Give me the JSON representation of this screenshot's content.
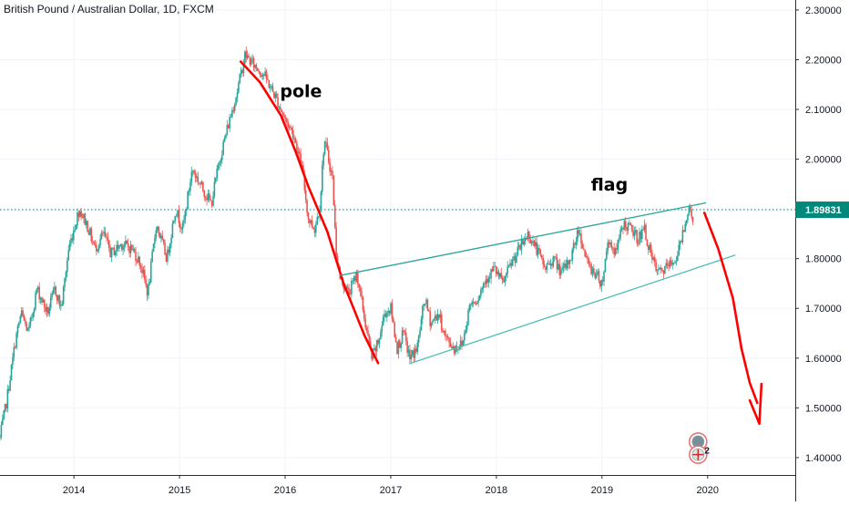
{
  "chart_data": {
    "type": "candlestick",
    "title": "British Pound / Australian Dollar, 1D, FXCM",
    "x_axis": {
      "labels": [
        "2014",
        "2015",
        "2016",
        "2017",
        "2018",
        "2019",
        "2020"
      ],
      "range": [
        2013.3,
        2020.83
      ]
    },
    "y_axis": {
      "labels": [
        "2.30000",
        "2.20000",
        "2.10000",
        "2.00000",
        "1.90000",
        "1.80000",
        "1.70000",
        "1.60000",
        "1.50000",
        "1.40000"
      ],
      "ticks": [
        2.3,
        2.2,
        2.1,
        2.0,
        1.9,
        1.8,
        1.7,
        1.6,
        1.5,
        1.4
      ],
      "range": [
        1.365,
        2.32
      ],
      "position": "right"
    },
    "price_path": [
      [
        2013.3,
        1.44
      ],
      [
        2013.36,
        1.51
      ],
      [
        2013.45,
        1.64
      ],
      [
        2013.5,
        1.69
      ],
      [
        2013.57,
        1.65
      ],
      [
        2013.65,
        1.74
      ],
      [
        2013.75,
        1.69
      ],
      [
        2013.82,
        1.74
      ],
      [
        2013.88,
        1.7
      ],
      [
        2013.95,
        1.82
      ],
      [
        2014.05,
        1.9
      ],
      [
        2014.12,
        1.87
      ],
      [
        2014.2,
        1.82
      ],
      [
        2014.28,
        1.85
      ],
      [
        2014.35,
        1.81
      ],
      [
        2014.45,
        1.83
      ],
      [
        2014.55,
        1.82
      ],
      [
        2014.63,
        1.79
      ],
      [
        2014.7,
        1.73
      ],
      [
        2014.78,
        1.87
      ],
      [
        2014.88,
        1.8
      ],
      [
        2014.96,
        1.9
      ],
      [
        2015.03,
        1.86
      ],
      [
        2015.12,
        1.98
      ],
      [
        2015.22,
        1.94
      ],
      [
        2015.3,
        1.91
      ],
      [
        2015.38,
        2.0
      ],
      [
        2015.45,
        2.06
      ],
      [
        2015.55,
        2.14
      ],
      [
        2015.62,
        2.21
      ],
      [
        2015.7,
        2.19
      ],
      [
        2015.8,
        2.17
      ],
      [
        2015.92,
        2.12
      ],
      [
        2016.0,
        2.08
      ],
      [
        2016.08,
        2.05
      ],
      [
        2016.16,
        1.98
      ],
      [
        2016.22,
        1.88
      ],
      [
        2016.28,
        1.86
      ],
      [
        2016.33,
        1.91
      ],
      [
        2016.37,
        2.04
      ],
      [
        2016.45,
        1.96
      ],
      [
        2016.48,
        1.82
      ],
      [
        2016.52,
        1.76
      ],
      [
        2016.6,
        1.73
      ],
      [
        2016.68,
        1.77
      ],
      [
        2016.75,
        1.68
      ],
      [
        2016.82,
        1.6
      ],
      [
        2016.88,
        1.63
      ],
      [
        2016.94,
        1.69
      ],
      [
        2017.0,
        1.7
      ],
      [
        2017.06,
        1.62
      ],
      [
        2017.12,
        1.65
      ],
      [
        2017.18,
        1.6
      ],
      [
        2017.25,
        1.62
      ],
      [
        2017.32,
        1.72
      ],
      [
        2017.38,
        1.67
      ],
      [
        2017.45,
        1.69
      ],
      [
        2017.52,
        1.64
      ],
      [
        2017.6,
        1.62
      ],
      [
        2017.68,
        1.63
      ],
      [
        2017.75,
        1.71
      ],
      [
        2017.82,
        1.72
      ],
      [
        2017.9,
        1.76
      ],
      [
        2017.98,
        1.78
      ],
      [
        2018.06,
        1.75
      ],
      [
        2018.14,
        1.79
      ],
      [
        2018.22,
        1.82
      ],
      [
        2018.3,
        1.85
      ],
      [
        2018.38,
        1.82
      ],
      [
        2018.46,
        1.78
      ],
      [
        2018.54,
        1.8
      ],
      [
        2018.62,
        1.77
      ],
      [
        2018.7,
        1.8
      ],
      [
        2018.78,
        1.86
      ],
      [
        2018.86,
        1.79
      ],
      [
        2018.94,
        1.77
      ],
      [
        2019.0,
        1.75
      ],
      [
        2019.06,
        1.84
      ],
      [
        2019.13,
        1.81
      ],
      [
        2019.2,
        1.87
      ],
      [
        2019.27,
        1.86
      ],
      [
        2019.34,
        1.84
      ],
      [
        2019.4,
        1.86
      ],
      [
        2019.47,
        1.8
      ],
      [
        2019.53,
        1.77
      ],
      [
        2019.6,
        1.78
      ],
      [
        2019.66,
        1.79
      ],
      [
        2019.72,
        1.81
      ],
      [
        2019.78,
        1.87
      ],
      [
        2019.82,
        1.9
      ],
      [
        2019.86,
        1.88
      ]
    ],
    "current_price": {
      "value": 1.89831,
      "label": "1.89831"
    },
    "annotations": [
      {
        "text": "pole",
        "x": 2016.15,
        "y": 2.125
      },
      {
        "text": "flag",
        "x": 2019.07,
        "y": 1.937
      }
    ],
    "lines": [
      {
        "name": "pole",
        "color": "#ff0000",
        "points": [
          [
            2015.58,
            2.196
          ],
          [
            2015.76,
            2.155
          ],
          [
            2015.96,
            2.088
          ],
          [
            2016.1,
            2.015
          ],
          [
            2016.22,
            1.945
          ],
          [
            2016.4,
            1.854
          ],
          [
            2016.55,
            1.752
          ],
          [
            2016.75,
            1.646
          ],
          [
            2016.88,
            1.59
          ]
        ]
      },
      {
        "name": "flag-upper",
        "color": "#26a69a",
        "points": [
          [
            2016.52,
            1.766
          ],
          [
            2019.98,
            1.912
          ]
        ]
      },
      {
        "name": "flag-lower",
        "color": "#4dbfb6",
        "points": [
          [
            2017.18,
            1.589
          ],
          [
            2020.26,
            1.807
          ]
        ]
      },
      {
        "name": "projection",
        "color": "#ff0000",
        "points": [
          [
            2019.97,
            1.892
          ],
          [
            2020.1,
            1.82
          ],
          [
            2020.24,
            1.72
          ],
          [
            2020.32,
            1.62
          ],
          [
            2020.4,
            1.55
          ],
          [
            2020.47,
            1.51
          ]
        ]
      },
      {
        "name": "projection-arrowhead",
        "color": "#ff0000",
        "points": [
          [
            2020.4,
            1.515
          ],
          [
            2020.49,
            1.468
          ],
          [
            2020.51,
            1.548
          ]
        ]
      }
    ],
    "badges": [
      {
        "kind": "event",
        "x": 2019.91,
        "y": 1.432,
        "count": ""
      },
      {
        "kind": "flag-event",
        "x": 2019.91,
        "y": 1.406,
        "count": "2"
      }
    ],
    "colors": {
      "up": "#26a69a",
      "down": "#ef5350",
      "red_line": "#ff0000",
      "price_line": "#00897b",
      "price_tag": "#00897b"
    },
    "grid": true,
    "legend": "none"
  }
}
